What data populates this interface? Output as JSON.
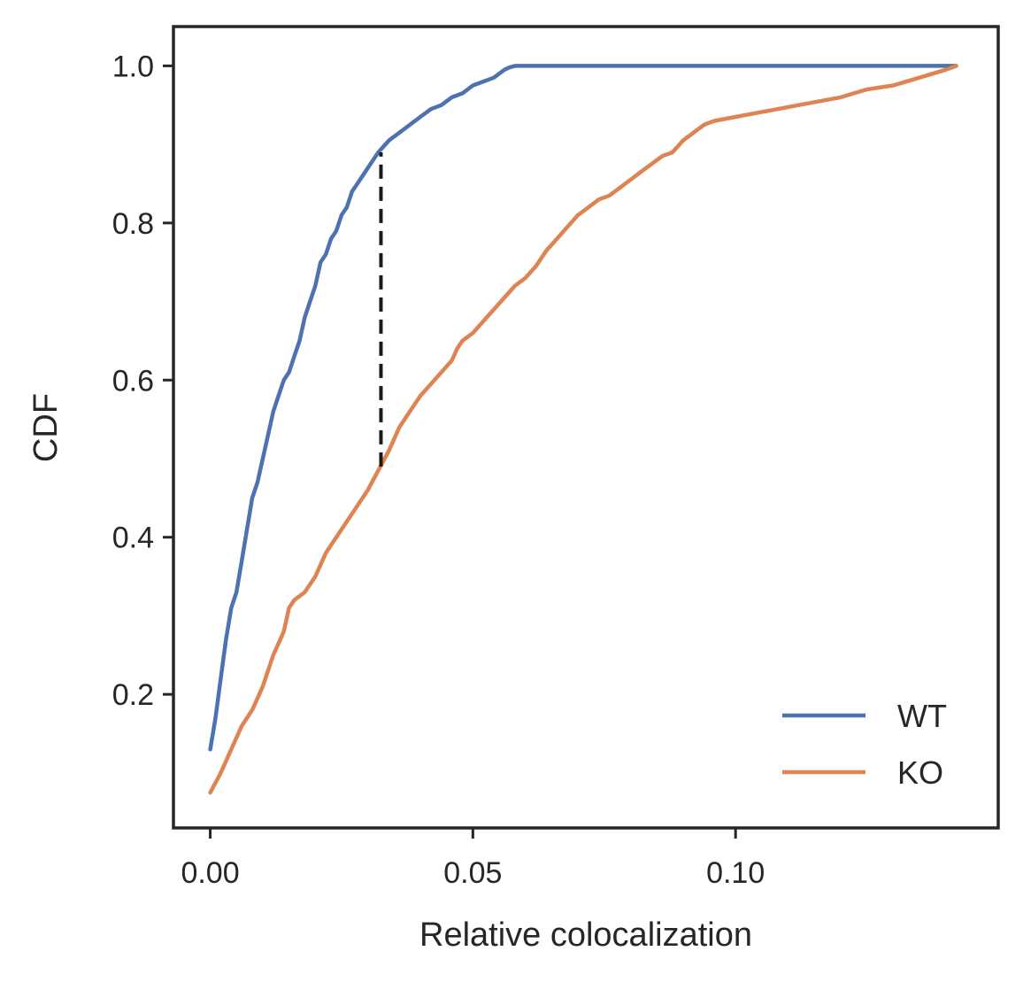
{
  "chart_data": {
    "type": "line",
    "title": "",
    "xlabel": "Relative colocalization",
    "ylabel": "CDF",
    "xlim": [
      -0.007,
      0.15
    ],
    "ylim": [
      0.03,
      1.05
    ],
    "xticks": [
      0.0,
      0.05,
      0.1
    ],
    "xtick_labels": [
      "0.00",
      "0.05",
      "0.10"
    ],
    "yticks": [
      0.2,
      0.4,
      0.6,
      0.8,
      1.0
    ],
    "ytick_labels": [
      "0.2",
      "0.4",
      "0.6",
      "0.8",
      "1.0"
    ],
    "grid": false,
    "legend_position": "lower-right",
    "series": [
      {
        "name": "WT",
        "color": "#4c72b0",
        "x": [
          0.0,
          0.001,
          0.002,
          0.003,
          0.004,
          0.005,
          0.006,
          0.007,
          0.008,
          0.009,
          0.01,
          0.011,
          0.012,
          0.013,
          0.014,
          0.015,
          0.016,
          0.017,
          0.018,
          0.019,
          0.02,
          0.021,
          0.022,
          0.023,
          0.024,
          0.025,
          0.026,
          0.027,
          0.028,
          0.029,
          0.03,
          0.031,
          0.032,
          0.034,
          0.036,
          0.038,
          0.04,
          0.042,
          0.044,
          0.046,
          0.048,
          0.05,
          0.052,
          0.054,
          0.056,
          0.057,
          0.058,
          0.08,
          0.1,
          0.12,
          0.142
        ],
        "y": [
          0.13,
          0.17,
          0.22,
          0.27,
          0.31,
          0.33,
          0.37,
          0.41,
          0.45,
          0.47,
          0.5,
          0.53,
          0.56,
          0.58,
          0.6,
          0.61,
          0.63,
          0.65,
          0.68,
          0.7,
          0.72,
          0.75,
          0.76,
          0.78,
          0.79,
          0.81,
          0.82,
          0.84,
          0.85,
          0.86,
          0.87,
          0.88,
          0.89,
          0.905,
          0.915,
          0.925,
          0.935,
          0.945,
          0.95,
          0.96,
          0.965,
          0.975,
          0.98,
          0.985,
          0.995,
          0.998,
          1.0,
          1.0,
          1.0,
          1.0,
          1.0
        ]
      },
      {
        "name": "KO",
        "color": "#dd8452",
        "x": [
          0.0,
          0.002,
          0.004,
          0.006,
          0.008,
          0.01,
          0.012,
          0.014,
          0.015,
          0.016,
          0.018,
          0.02,
          0.022,
          0.024,
          0.026,
          0.028,
          0.03,
          0.032,
          0.034,
          0.036,
          0.038,
          0.04,
          0.042,
          0.044,
          0.046,
          0.047,
          0.048,
          0.05,
          0.052,
          0.054,
          0.056,
          0.058,
          0.06,
          0.062,
          0.064,
          0.066,
          0.068,
          0.07,
          0.072,
          0.074,
          0.076,
          0.078,
          0.08,
          0.082,
          0.084,
          0.086,
          0.088,
          0.09,
          0.092,
          0.094,
          0.096,
          0.1,
          0.104,
          0.108,
          0.112,
          0.116,
          0.12,
          0.125,
          0.13,
          0.135,
          0.14,
          0.142
        ],
        "y": [
          0.075,
          0.1,
          0.13,
          0.16,
          0.18,
          0.21,
          0.25,
          0.28,
          0.31,
          0.32,
          0.33,
          0.35,
          0.38,
          0.4,
          0.42,
          0.44,
          0.46,
          0.485,
          0.51,
          0.54,
          0.56,
          0.58,
          0.595,
          0.61,
          0.625,
          0.64,
          0.65,
          0.66,
          0.675,
          0.69,
          0.705,
          0.72,
          0.73,
          0.745,
          0.765,
          0.78,
          0.795,
          0.81,
          0.82,
          0.83,
          0.835,
          0.845,
          0.855,
          0.865,
          0.875,
          0.885,
          0.89,
          0.905,
          0.915,
          0.925,
          0.93,
          0.935,
          0.94,
          0.945,
          0.95,
          0.955,
          0.96,
          0.97,
          0.975,
          0.985,
          0.995,
          1.0
        ]
      }
    ],
    "ks_marker": {
      "x": 0.0325,
      "y_from": 0.49,
      "y_to": 0.89,
      "color": "#1a1a1a",
      "style": "dashed"
    }
  }
}
